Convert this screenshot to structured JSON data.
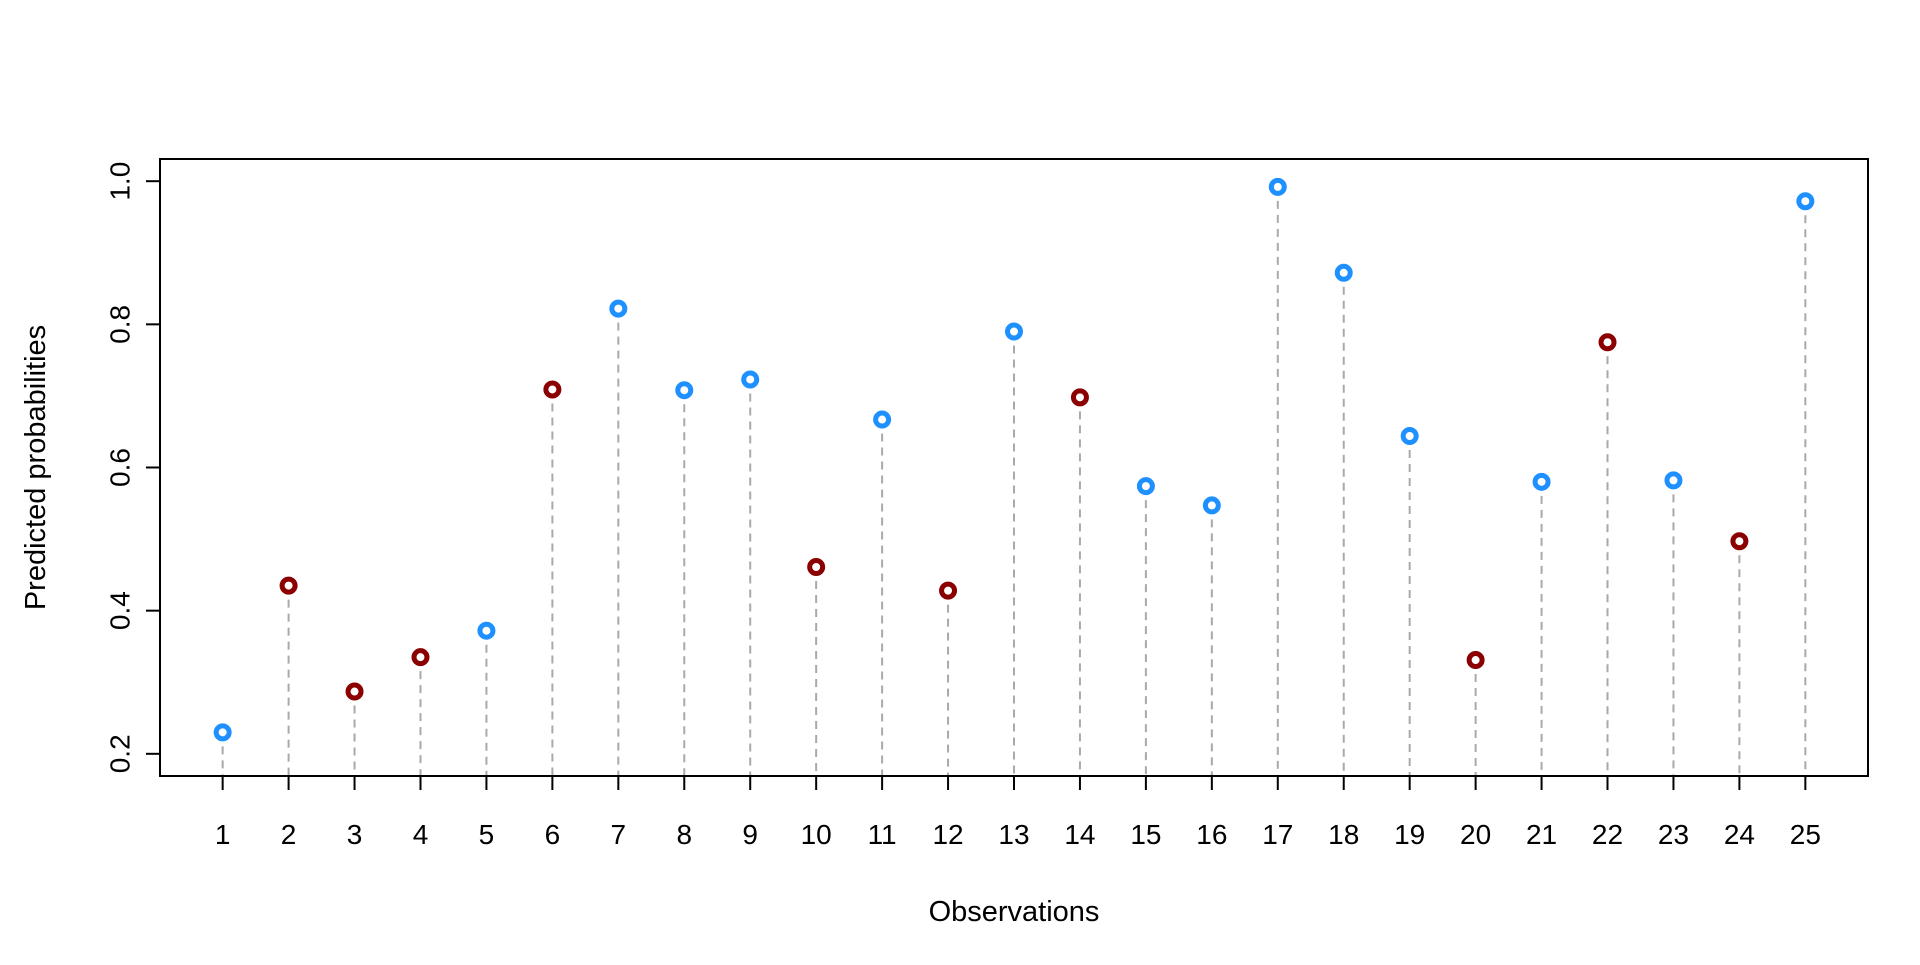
{
  "chart_data": {
    "type": "scatter",
    "style": "lollipop",
    "xlabel": "Observations",
    "ylabel": "Predicted probabilities",
    "ylim": [
      0.2,
      1.0
    ],
    "xlim": [
      0.05,
      25.95
    ],
    "y_ticks": [
      "0.2",
      "0.4",
      "0.6",
      "0.8",
      "1.0"
    ],
    "x_ticks": [
      "1",
      "2",
      "3",
      "4",
      "5",
      "6",
      "7",
      "8",
      "9",
      "10",
      "11",
      "12",
      "13",
      "14",
      "15",
      "16",
      "17",
      "18",
      "19",
      "20",
      "21",
      "22",
      "23",
      "24",
      "25"
    ],
    "grid": false,
    "legend": "none",
    "colors": {
      "blue": "#1E90FF",
      "red": "#8B0000",
      "stem": "#A9A9A9",
      "axis": "#000000"
    },
    "points": [
      {
        "x": 1,
        "y": 0.23,
        "color": "blue"
      },
      {
        "x": 2,
        "y": 0.435,
        "color": "red"
      },
      {
        "x": 3,
        "y": 0.287,
        "color": "red"
      },
      {
        "x": 4,
        "y": 0.335,
        "color": "red"
      },
      {
        "x": 5,
        "y": 0.372,
        "color": "blue"
      },
      {
        "x": 6,
        "y": 0.709,
        "color": "red"
      },
      {
        "x": 7,
        "y": 0.822,
        "color": "blue"
      },
      {
        "x": 8,
        "y": 0.708,
        "color": "blue"
      },
      {
        "x": 9,
        "y": 0.723,
        "color": "blue"
      },
      {
        "x": 10,
        "y": 0.461,
        "color": "red"
      },
      {
        "x": 11,
        "y": 0.667,
        "color": "blue"
      },
      {
        "x": 12,
        "y": 0.428,
        "color": "red"
      },
      {
        "x": 13,
        "y": 0.79,
        "color": "blue"
      },
      {
        "x": 14,
        "y": 0.698,
        "color": "red"
      },
      {
        "x": 15,
        "y": 0.574,
        "color": "blue"
      },
      {
        "x": 16,
        "y": 0.547,
        "color": "blue"
      },
      {
        "x": 17,
        "y": 0.992,
        "color": "blue"
      },
      {
        "x": 18,
        "y": 0.872,
        "color": "blue"
      },
      {
        "x": 19,
        "y": 0.644,
        "color": "blue"
      },
      {
        "x": 20,
        "y": 0.331,
        "color": "red"
      },
      {
        "x": 21,
        "y": 0.58,
        "color": "blue"
      },
      {
        "x": 22,
        "y": 0.775,
        "color": "red"
      },
      {
        "x": 23,
        "y": 0.582,
        "color": "blue"
      },
      {
        "x": 24,
        "y": 0.497,
        "color": "red"
      },
      {
        "x": 25,
        "y": 0.972,
        "color": "blue"
      }
    ]
  }
}
